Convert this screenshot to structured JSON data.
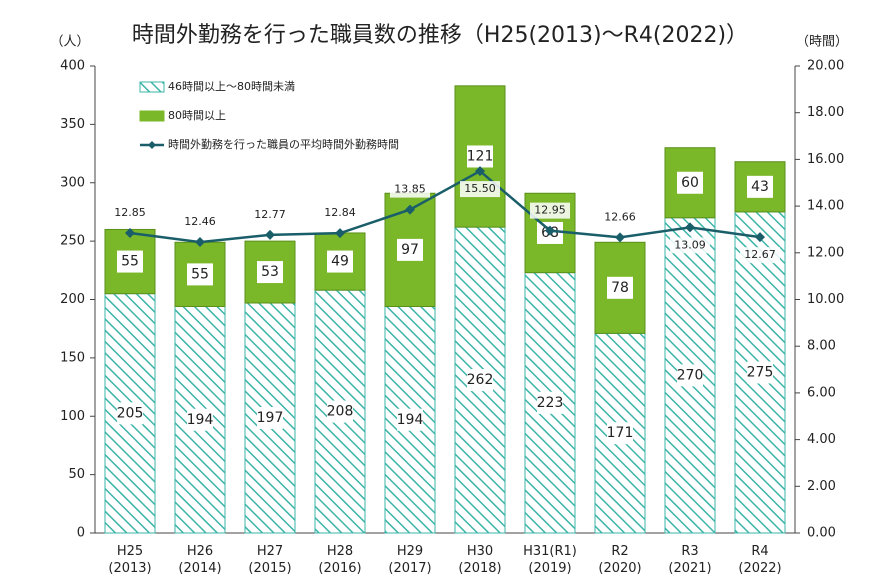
{
  "chart_data": {
    "type": "stacked_bar_line",
    "title": "時間外勤務を行った職員数の推移（H25(2013)～R4(2022)）",
    "y_label": "（人）",
    "y2_label": "（時間）",
    "categories": [
      "H25\n(2013)",
      "H26\n(2014)",
      "H27\n(2015)",
      "H28\n(2016)",
      "H29\n(2017)",
      "H30\n(2018)",
      "H31(R1)\n(2019)",
      "R2\n(2020)",
      "R3\n(2021)",
      "R4\n(2022)"
    ],
    "series": [
      {
        "name": "46時間以上～80時間未満",
        "color": "#3cb4a8",
        "hatch": true,
        "values": [
          205,
          194,
          197,
          208,
          194,
          262,
          223,
          171,
          270,
          275
        ]
      },
      {
        "name": "80時間以上",
        "color": "#7ab829",
        "values": [
          55,
          55,
          53,
          49,
          97,
          121,
          68,
          78,
          60,
          43
        ]
      },
      {
        "name": "時間外勤務を行った職員の平均時間外勤務時間",
        "color": "#1a5e6a",
        "axis": "y2",
        "type": "line",
        "values": [
          12.85,
          12.46,
          12.77,
          12.84,
          13.85,
          15.5,
          12.95,
          12.66,
          13.09,
          12.67
        ],
        "value_labels": [
          "12.85",
          "12.46",
          "12.77",
          "12.84",
          "13.85",
          "15.50",
          "12.95",
          "12.66",
          "13.09",
          "12.67"
        ]
      }
    ],
    "ylim": [
      0,
      400
    ],
    "yticks": [
      0,
      50,
      100,
      150,
      200,
      250,
      300,
      350,
      400
    ],
    "y2lim": [
      0,
      20
    ],
    "y2ticks": [
      {
        "value": 0,
        "label": "0.00"
      },
      {
        "value": 2,
        "label": "2.00"
      },
      {
        "value": 4,
        "label": "4.00"
      },
      {
        "value": 6,
        "label": "6.00"
      },
      {
        "value": 8,
        "label": "8.00"
      },
      {
        "value": 10,
        "label": "10.00"
      },
      {
        "value": 12,
        "label": "12.00"
      },
      {
        "value": 14,
        "label": "14.00"
      },
      {
        "value": 16,
        "label": "16.00"
      },
      {
        "value": 18,
        "label": "18.00"
      },
      {
        "value": 20,
        "label": "20.00"
      }
    ],
    "legend": "upper left",
    "grid": false
  }
}
